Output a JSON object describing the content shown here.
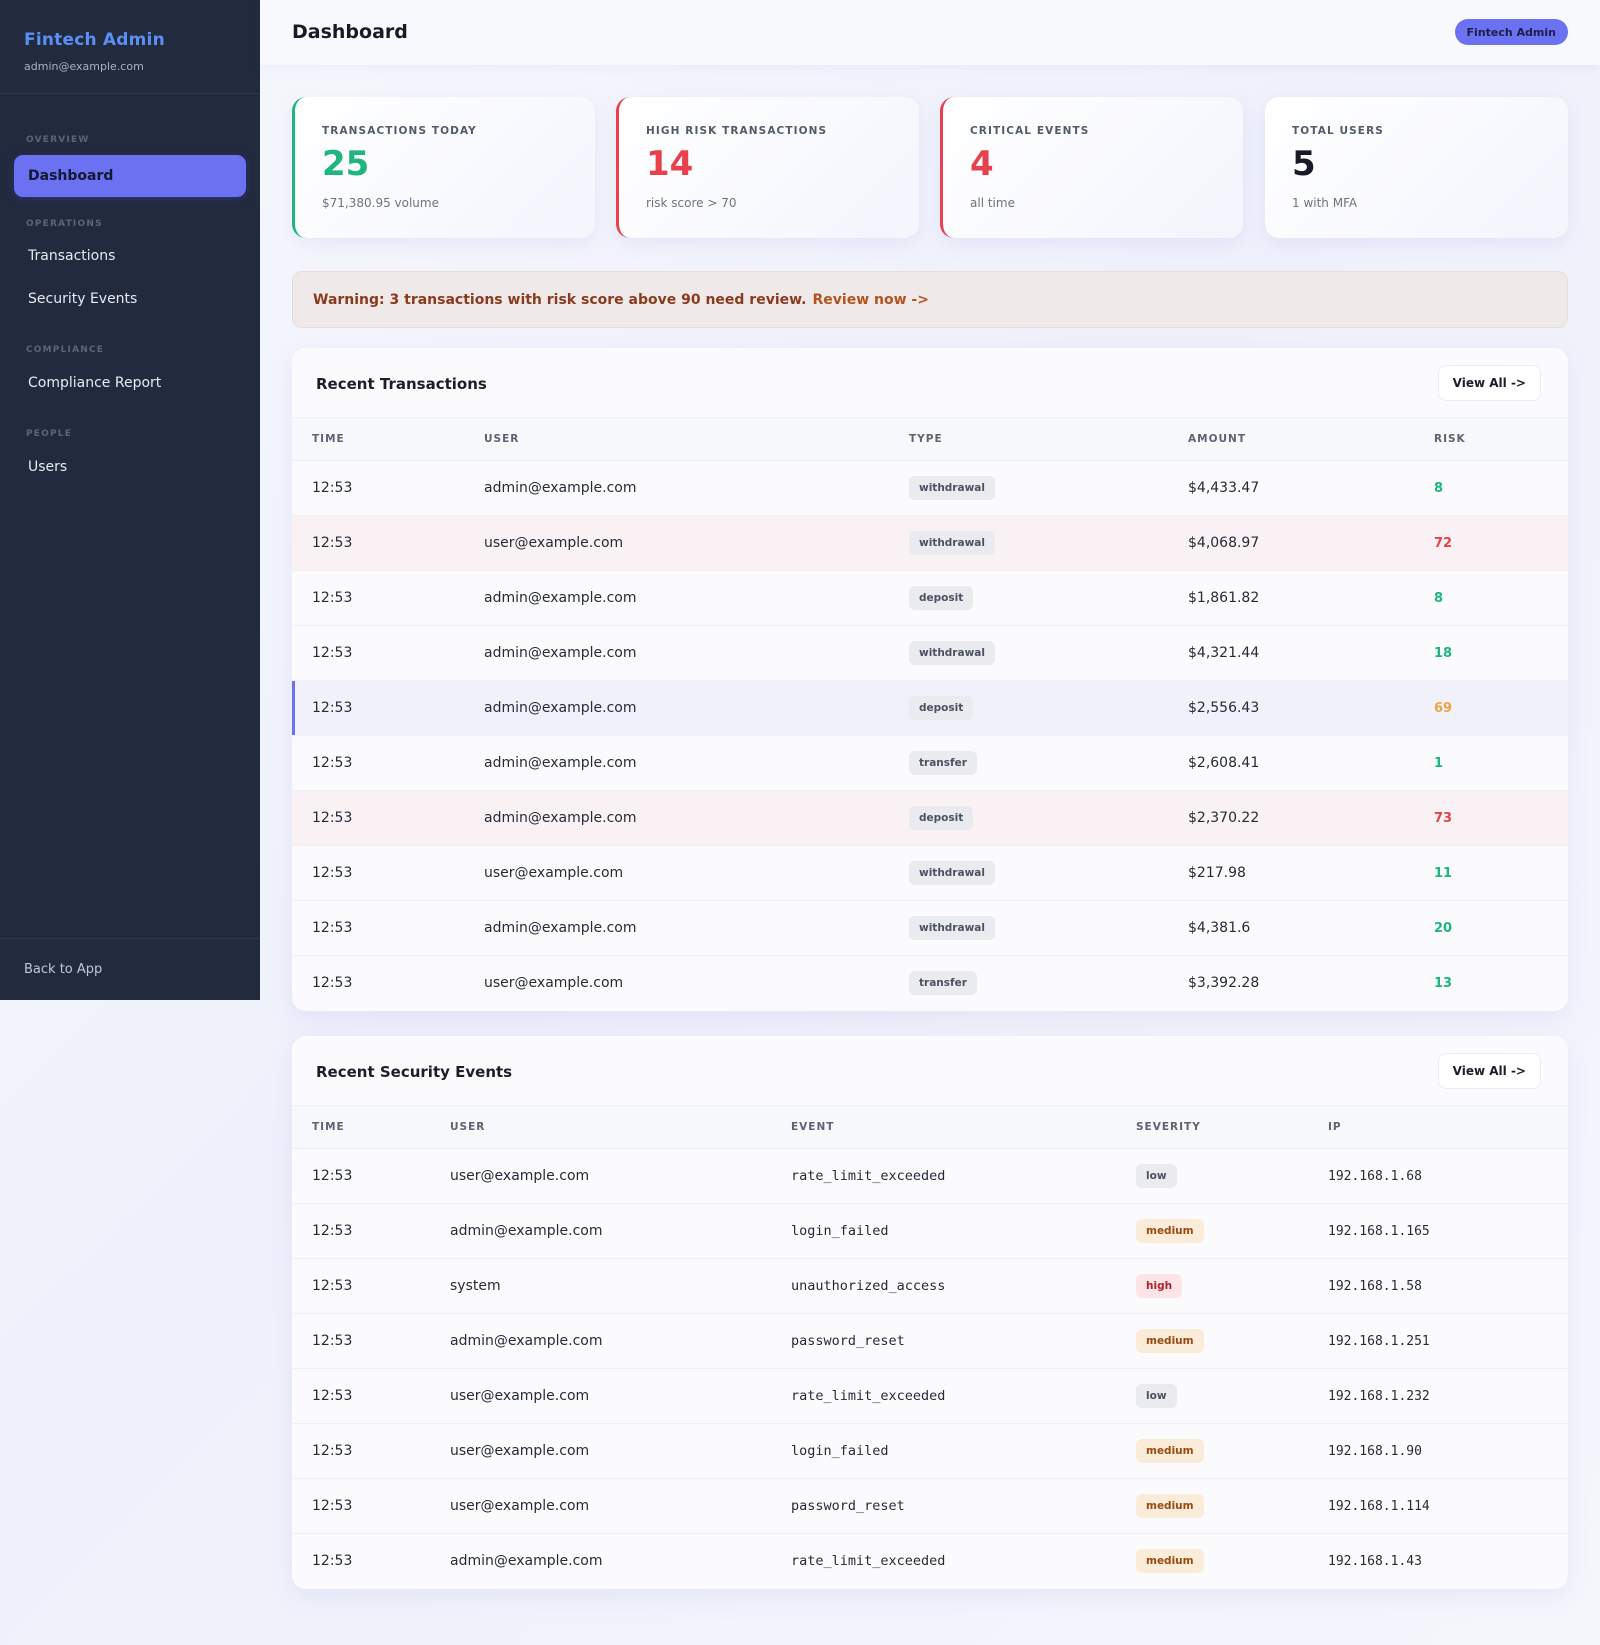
{
  "sidebar": {
    "brand": "Fintech Admin",
    "email": "admin@example.com",
    "sections": {
      "overview": "OVERVIEW",
      "operations": "OPERATIONS",
      "compliance": "COMPLIANCE",
      "people": "PEOPLE"
    },
    "items": {
      "dashboard": "Dashboard",
      "transactions": "Transactions",
      "security": "Security Events",
      "compliance": "Compliance Report",
      "users": "Users"
    },
    "back": "Back to App"
  },
  "header": {
    "title": "Dashboard",
    "badge": "Fintech Admin"
  },
  "stats": [
    {
      "label": "TRANSACTIONS TODAY",
      "value": "25",
      "sub": "$71,380.95 volume",
      "color": "#1fb57d"
    },
    {
      "label": "HIGH RISK TRANSACTIONS",
      "value": "14",
      "sub": "risk score > 70",
      "color": "#e8414b"
    },
    {
      "label": "CRITICAL EVENTS",
      "value": "4",
      "sub": "all time",
      "color": "#e8414b"
    },
    {
      "label": "TOTAL USERS",
      "value": "5",
      "sub": "1 with MFA",
      "color": "#171b27"
    }
  ],
  "alert": {
    "text": "Warning: 3 transactions with risk score above 90 need review.",
    "link": "Review now ->"
  },
  "transactions": {
    "title": "Recent Transactions",
    "view_all": "View All ->",
    "columns": [
      "TIME",
      "USER",
      "TYPE",
      "AMOUNT",
      "RISK"
    ],
    "rows": [
      {
        "time": "12:53",
        "user": "admin@example.com",
        "type": "withdrawal",
        "amount": "$4,433.47",
        "risk": "8"
      },
      {
        "time": "12:53",
        "user": "user@example.com",
        "type": "withdrawal",
        "amount": "$4,068.97",
        "risk": "72"
      },
      {
        "time": "12:53",
        "user": "admin@example.com",
        "type": "deposit",
        "amount": "$1,861.82",
        "risk": "8"
      },
      {
        "time": "12:53",
        "user": "admin@example.com",
        "type": "withdrawal",
        "amount": "$4,321.44",
        "risk": "18"
      },
      {
        "time": "12:53",
        "user": "admin@example.com",
        "type": "deposit",
        "amount": "$2,556.43",
        "risk": "69"
      },
      {
        "time": "12:53",
        "user": "admin@example.com",
        "type": "transfer",
        "amount": "$2,608.41",
        "risk": "1"
      },
      {
        "time": "12:53",
        "user": "admin@example.com",
        "type": "deposit",
        "amount": "$2,370.22",
        "risk": "73"
      },
      {
        "time": "12:53",
        "user": "user@example.com",
        "type": "withdrawal",
        "amount": "$217.98",
        "risk": "11"
      },
      {
        "time": "12:53",
        "user": "admin@example.com",
        "type": "withdrawal",
        "amount": "$4,381.6",
        "risk": "20"
      },
      {
        "time": "12:53",
        "user": "user@example.com",
        "type": "transfer",
        "amount": "$3,392.28",
        "risk": "13"
      }
    ]
  },
  "security": {
    "title": "Recent Security Events",
    "view_all": "View All ->",
    "columns": [
      "TIME",
      "USER",
      "EVENT",
      "SEVERITY",
      "IP"
    ],
    "rows": [
      {
        "time": "12:53",
        "user": "user@example.com",
        "event": "rate_limit_exceeded",
        "severity": "low",
        "ip": "192.168.1.68"
      },
      {
        "time": "12:53",
        "user": "admin@example.com",
        "event": "login_failed",
        "severity": "medium",
        "ip": "192.168.1.165"
      },
      {
        "time": "12:53",
        "user": "system",
        "event": "unauthorized_access",
        "severity": "high",
        "ip": "192.168.1.58"
      },
      {
        "time": "12:53",
        "user": "admin@example.com",
        "event": "password_reset",
        "severity": "medium",
        "ip": "192.168.1.251"
      },
      {
        "time": "12:53",
        "user": "user@example.com",
        "event": "rate_limit_exceeded",
        "severity": "low",
        "ip": "192.168.1.232"
      },
      {
        "time": "12:53",
        "user": "user@example.com",
        "event": "login_failed",
        "severity": "medium",
        "ip": "192.168.1.90"
      },
      {
        "time": "12:53",
        "user": "user@example.com",
        "event": "password_reset",
        "severity": "medium",
        "ip": "192.168.1.114"
      },
      {
        "time": "12:53",
        "user": "admin@example.com",
        "event": "rate_limit_exceeded",
        "severity": "medium",
        "ip": "192.168.1.43"
      }
    ]
  },
  "colors": {
    "accent": "#6c71f2",
    "risk_low": "#1fb57d",
    "risk_mid": "#f0a23b",
    "risk_high": "#e8414b",
    "sev_low_bg": "#eaebef",
    "sev_medium_bg": "#fbecd9",
    "sev_high_bg": "#fde4e6"
  }
}
